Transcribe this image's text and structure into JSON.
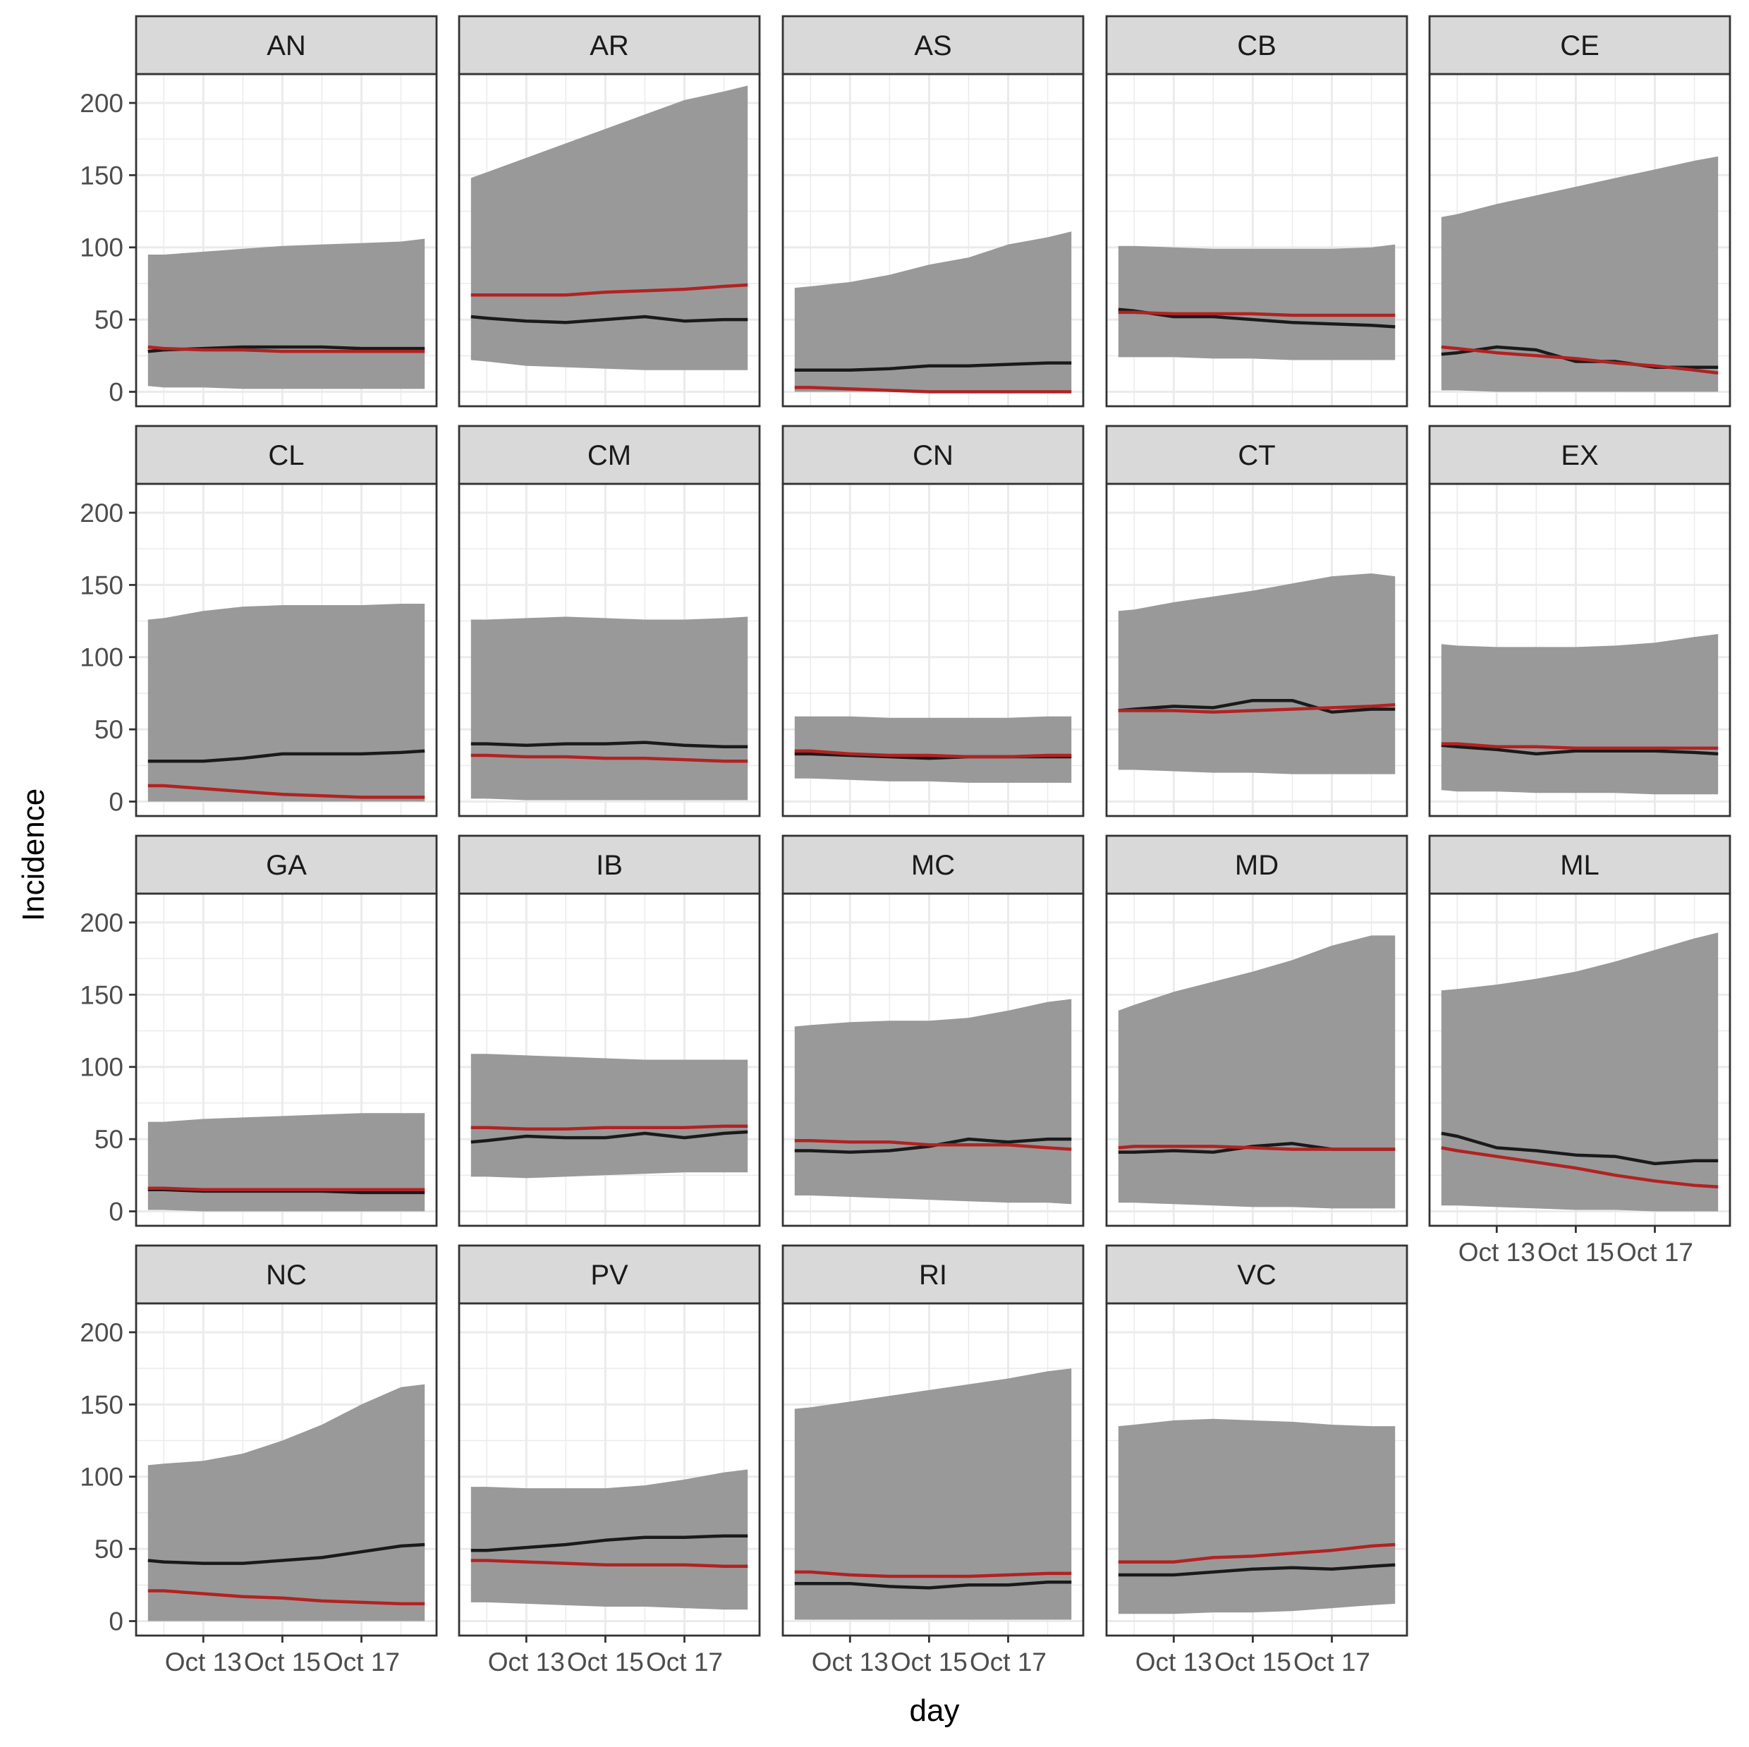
{
  "chart_data": {
    "type": "line",
    "facet_style": "facet_wrap",
    "xlabel": "day",
    "ylabel": "Incidence",
    "ylim": [
      -10,
      220
    ],
    "y_ticks": [
      0,
      50,
      100,
      150,
      200
    ],
    "x_days": [
      11.6,
      12,
      13,
      14,
      15,
      16,
      17,
      18,
      18.6
    ],
    "x_range": [
      11.3,
      18.9
    ],
    "x_ticks": [
      {
        "value": 13,
        "label": "Oct 13"
      },
      {
        "value": 15,
        "label": "Oct 15"
      },
      {
        "value": 17,
        "label": "Oct 17"
      }
    ],
    "series_legend": {
      "observed": "black line",
      "predicted": "red line",
      "interval": "grey band"
    },
    "colors": {
      "observed": "#1a1a1a",
      "predicted": "#b22222",
      "band": "#999999",
      "strip": "#d9d9d9"
    },
    "x_day_points": [
      11.6,
      12,
      13,
      14,
      15,
      16,
      17,
      18,
      18.6
    ],
    "facets": [
      {
        "name": "AN",
        "lower": [
          4,
          3,
          3,
          2,
          2,
          2,
          2,
          2,
          2
        ],
        "upper": [
          95,
          95,
          97,
          99,
          101,
          102,
          103,
          104,
          106
        ],
        "observed": [
          28,
          29,
          30,
          31,
          31,
          31,
          30,
          30,
          30
        ],
        "predicted": [
          31,
          30,
          29,
          29,
          28,
          28,
          28,
          28,
          28
        ]
      },
      {
        "name": "AR",
        "lower": [
          22,
          21,
          18,
          17,
          16,
          15,
          15,
          15,
          15
        ],
        "upper": [
          148,
          152,
          162,
          172,
          182,
          192,
          202,
          208,
          212
        ],
        "observed": [
          52,
          51,
          49,
          48,
          50,
          52,
          49,
          50,
          50
        ],
        "predicted": [
          67,
          67,
          67,
          67,
          69,
          70,
          71,
          73,
          74
        ]
      },
      {
        "name": "AS",
        "lower": [
          0,
          0,
          0,
          0,
          0,
          0,
          0,
          0,
          0
        ],
        "upper": [
          72,
          73,
          76,
          81,
          88,
          93,
          102,
          107,
          111
        ],
        "observed": [
          15,
          15,
          15,
          16,
          18,
          18,
          19,
          20,
          20
        ],
        "predicted": [
          3,
          3,
          2,
          1,
          0,
          0,
          0,
          0,
          0
        ]
      },
      {
        "name": "CB",
        "lower": [
          24,
          24,
          24,
          23,
          23,
          22,
          22,
          22,
          22
        ],
        "upper": [
          101,
          101,
          100,
          99,
          99,
          99,
          99,
          100,
          102
        ],
        "observed": [
          57,
          56,
          52,
          52,
          50,
          48,
          47,
          46,
          45
        ],
        "predicted": [
          55,
          55,
          54,
          54,
          54,
          53,
          53,
          53,
          53
        ]
      },
      {
        "name": "CE",
        "lower": [
          1,
          1,
          0,
          0,
          0,
          0,
          0,
          0,
          0
        ],
        "upper": [
          121,
          123,
          130,
          136,
          142,
          148,
          154,
          160,
          163
        ],
        "observed": [
          26,
          27,
          31,
          29,
          21,
          21,
          17,
          17,
          17
        ],
        "predicted": [
          31,
          30,
          27,
          25,
          23,
          20,
          18,
          15,
          13
        ]
      },
      {
        "name": "CL",
        "lower": [
          0,
          0,
          0,
          0,
          0,
          0,
          0,
          0,
          0
        ],
        "upper": [
          126,
          127,
          132,
          135,
          136,
          136,
          136,
          137,
          137
        ],
        "observed": [
          28,
          28,
          28,
          30,
          33,
          33,
          33,
          34,
          35
        ],
        "predicted": [
          11,
          11,
          9,
          7,
          5,
          4,
          3,
          3,
          3
        ]
      },
      {
        "name": "CM",
        "lower": [
          2,
          2,
          1,
          1,
          1,
          1,
          1,
          1,
          1
        ],
        "upper": [
          126,
          126,
          127,
          128,
          127,
          126,
          126,
          127,
          128
        ],
        "observed": [
          40,
          40,
          39,
          40,
          40,
          41,
          39,
          38,
          38
        ],
        "predicted": [
          32,
          32,
          31,
          31,
          30,
          30,
          29,
          28,
          28
        ]
      },
      {
        "name": "CN",
        "lower": [
          16,
          16,
          15,
          14,
          14,
          13,
          13,
          13,
          13
        ],
        "upper": [
          59,
          59,
          59,
          58,
          58,
          58,
          58,
          59,
          59
        ],
        "observed": [
          33,
          33,
          32,
          31,
          30,
          31,
          31,
          31,
          31
        ],
        "predicted": [
          35,
          35,
          33,
          32,
          32,
          31,
          31,
          32,
          32
        ]
      },
      {
        "name": "CT",
        "lower": [
          22,
          22,
          21,
          20,
          20,
          19,
          19,
          19,
          19
        ],
        "upper": [
          132,
          133,
          138,
          142,
          146,
          151,
          156,
          158,
          156
        ],
        "observed": [
          63,
          64,
          66,
          65,
          70,
          70,
          62,
          64,
          64
        ],
        "predicted": [
          63,
          63,
          63,
          62,
          63,
          64,
          65,
          66,
          67
        ]
      },
      {
        "name": "EX",
        "lower": [
          8,
          7,
          7,
          6,
          6,
          6,
          5,
          5,
          5
        ],
        "upper": [
          109,
          108,
          107,
          107,
          107,
          108,
          110,
          114,
          116
        ],
        "observed": [
          39,
          38,
          36,
          33,
          35,
          35,
          35,
          34,
          33
        ],
        "predicted": [
          40,
          40,
          38,
          38,
          37,
          37,
          37,
          37,
          37
        ]
      },
      {
        "name": "GA",
        "lower": [
          1,
          1,
          0,
          0,
          0,
          0,
          0,
          0,
          0
        ],
        "upper": [
          62,
          62,
          64,
          65,
          66,
          67,
          68,
          68,
          68
        ],
        "observed": [
          15,
          15,
          14,
          14,
          14,
          14,
          13,
          13,
          13
        ],
        "predicted": [
          16,
          16,
          15,
          15,
          15,
          15,
          15,
          15,
          15
        ]
      },
      {
        "name": "IB",
        "lower": [
          24,
          24,
          23,
          24,
          25,
          26,
          27,
          27,
          27
        ],
        "upper": [
          109,
          109,
          108,
          107,
          106,
          105,
          105,
          105,
          105
        ],
        "observed": [
          48,
          49,
          52,
          51,
          51,
          54,
          51,
          54,
          55
        ],
        "predicted": [
          58,
          58,
          57,
          57,
          58,
          58,
          58,
          59,
          59
        ]
      },
      {
        "name": "MC",
        "lower": [
          11,
          11,
          10,
          9,
          8,
          7,
          6,
          6,
          5
        ],
        "upper": [
          128,
          129,
          131,
          132,
          132,
          134,
          139,
          145,
          147
        ],
        "observed": [
          42,
          42,
          41,
          42,
          45,
          50,
          48,
          50,
          50
        ],
        "predicted": [
          49,
          49,
          48,
          48,
          46,
          46,
          46,
          44,
          43
        ]
      },
      {
        "name": "MD",
        "lower": [
          6,
          6,
          5,
          4,
          3,
          3,
          2,
          2,
          2
        ],
        "upper": [
          139,
          143,
          152,
          159,
          166,
          174,
          184,
          191,
          191
        ],
        "observed": [
          41,
          41,
          42,
          41,
          45,
          47,
          43,
          43,
          43
        ],
        "predicted": [
          44,
          45,
          45,
          45,
          44,
          43,
          43,
          43,
          43
        ]
      },
      {
        "name": "ML",
        "lower": [
          4,
          4,
          3,
          2,
          1,
          1,
          0,
          0,
          0
        ],
        "upper": [
          153,
          154,
          157,
          161,
          166,
          173,
          181,
          189,
          193
        ],
        "observed": [
          54,
          52,
          44,
          42,
          39,
          38,
          33,
          35,
          35
        ],
        "predicted": [
          44,
          42,
          38,
          34,
          30,
          25,
          21,
          18,
          17
        ]
      },
      {
        "name": "NC",
        "lower": [
          0,
          0,
          0,
          0,
          0,
          0,
          0,
          0,
          0
        ],
        "upper": [
          108,
          109,
          111,
          116,
          125,
          136,
          150,
          162,
          164
        ],
        "observed": [
          42,
          41,
          40,
          40,
          42,
          44,
          48,
          52,
          53
        ],
        "predicted": [
          21,
          21,
          19,
          17,
          16,
          14,
          13,
          12,
          12
        ]
      },
      {
        "name": "PV",
        "lower": [
          13,
          13,
          12,
          11,
          10,
          10,
          9,
          8,
          8
        ],
        "upper": [
          93,
          93,
          92,
          92,
          92,
          94,
          98,
          103,
          105
        ],
        "observed": [
          49,
          49,
          51,
          53,
          56,
          58,
          58,
          59,
          59
        ],
        "predicted": [
          42,
          42,
          41,
          40,
          39,
          39,
          39,
          38,
          38
        ]
      },
      {
        "name": "RI",
        "lower": [
          1,
          1,
          1,
          1,
          1,
          1,
          1,
          1,
          1
        ],
        "upper": [
          147,
          148,
          152,
          156,
          160,
          164,
          168,
          173,
          175
        ],
        "observed": [
          26,
          26,
          26,
          24,
          23,
          25,
          25,
          27,
          27
        ],
        "predicted": [
          34,
          34,
          32,
          31,
          31,
          31,
          32,
          33,
          33
        ]
      },
      {
        "name": "VC",
        "lower": [
          5,
          5,
          5,
          6,
          6,
          7,
          9,
          11,
          12
        ],
        "upper": [
          135,
          136,
          139,
          140,
          139,
          138,
          136,
          135,
          135
        ],
        "observed": [
          32,
          32,
          32,
          34,
          36,
          37,
          36,
          38,
          39
        ],
        "predicted": [
          41,
          41,
          41,
          44,
          45,
          47,
          49,
          52,
          53
        ]
      }
    ]
  }
}
